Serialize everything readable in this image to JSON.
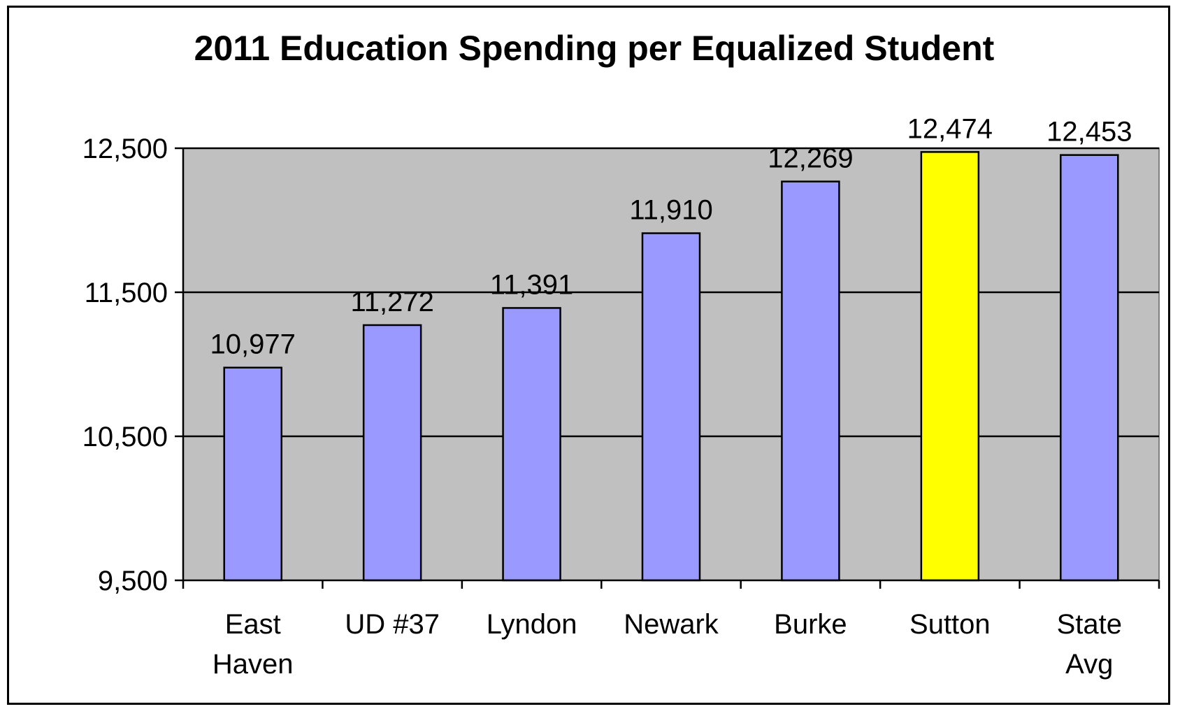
{
  "chart_data": {
    "type": "bar",
    "title": "2011 Education Spending per Equalized Student",
    "xlabel": "",
    "ylabel": "",
    "categories": [
      [
        "East",
        "Haven"
      ],
      [
        "UD #37"
      ],
      [
        "Lyndon"
      ],
      [
        "Newark"
      ],
      [
        "Burke"
      ],
      [
        "Sutton"
      ],
      [
        "State",
        "Avg"
      ]
    ],
    "values": [
      10977,
      11272,
      11391,
      11910,
      12269,
      12474,
      12453
    ],
    "data_labels": [
      "10,977",
      "11,272",
      "11,391",
      "11,910",
      "12,269",
      "12,474",
      "12,453"
    ],
    "ylim": [
      9500,
      12500
    ],
    "yticks": [
      9500,
      10500,
      11500,
      12500
    ],
    "ytick_labels": [
      "9,500",
      "10,500",
      "11,500",
      "12,500"
    ],
    "grid": true,
    "colors": {
      "bar": "#9999ff",
      "highlight": "#ffff00",
      "plot_background": "#c0c0c0",
      "gridline": "#000000"
    },
    "highlight_index": 5
  }
}
